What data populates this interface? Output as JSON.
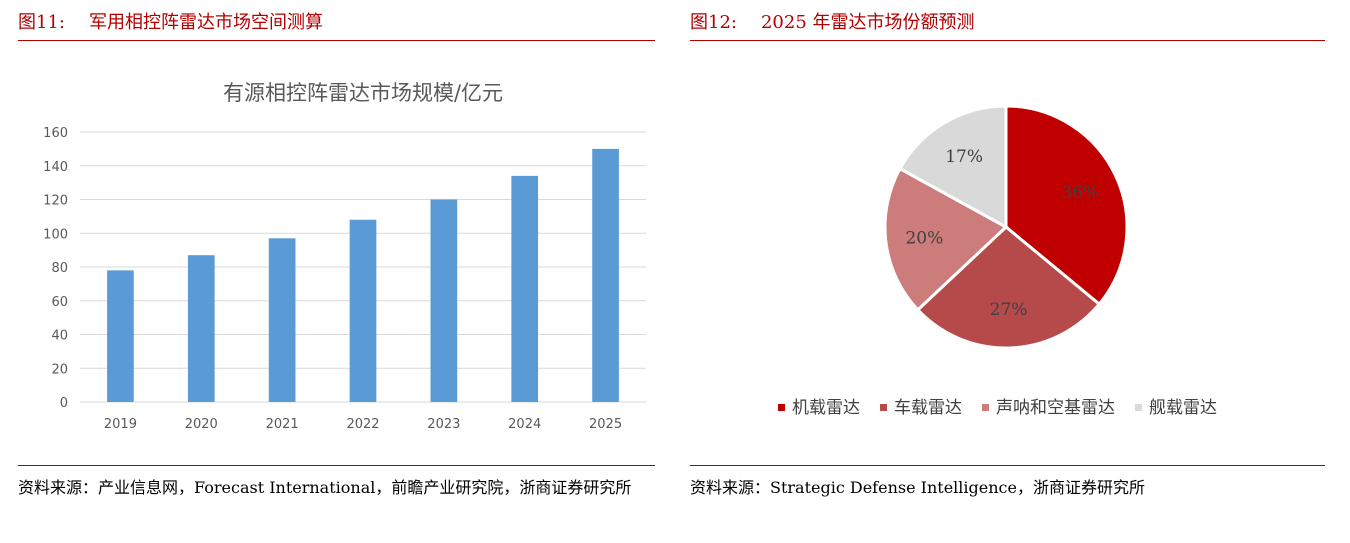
{
  "figures": [
    {
      "number": "图11:",
      "title": "军用相控阵雷达市场空间测算",
      "source": "资料来源：产业信息网，Forecast International，前瞻产业研究院，浙商证券研究所"
    },
    {
      "number": "图12:",
      "title": "2025 年雷达市场份额预测",
      "source": "资料来源：Strategic Defense Intelligence，浙商证券研究所"
    }
  ],
  "chart_data": [
    {
      "type": "bar",
      "title": "有源相控阵雷达市场规模/亿元",
      "categories": [
        "2019",
        "2020",
        "2021",
        "2022",
        "2023",
        "2024",
        "2025"
      ],
      "values": [
        78,
        87,
        97,
        108,
        120,
        134,
        150
      ],
      "ylim": [
        0,
        160
      ],
      "yticks": [
        "0",
        "20",
        "40",
        "60",
        "80",
        "100",
        "120",
        "140",
        "160"
      ],
      "grid": true,
      "color": "#5b9bd5"
    },
    {
      "type": "pie",
      "labels": [
        "机载雷达",
        "车载雷达",
        "声呐和空基雷达",
        "舰载雷达"
      ],
      "values": [
        36,
        27,
        20,
        17
      ],
      "value_labels": [
        "36%",
        "27%",
        "20%",
        "17%"
      ],
      "colors": [
        "#c00000",
        "#b64a4a",
        "#cd7c7c",
        "#d9d9d9"
      ],
      "legend_position": "bottom"
    }
  ]
}
